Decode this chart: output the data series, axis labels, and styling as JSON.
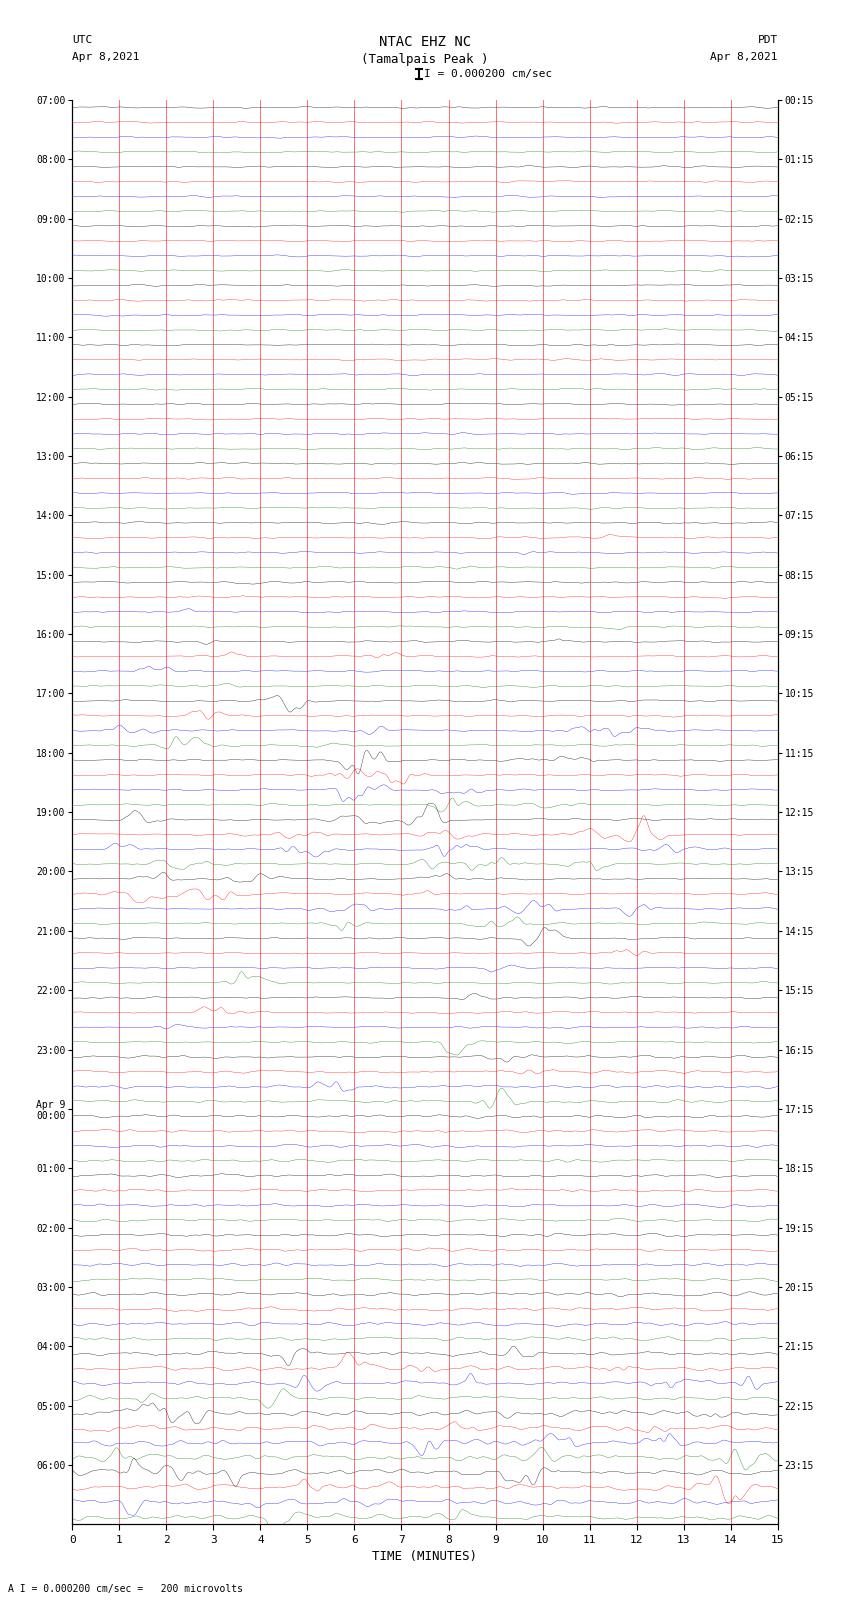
{
  "title_line1": "NTAC EHZ NC",
  "title_line2": "(Tamalpais Peak )",
  "scale_text": "I = 0.000200 cm/sec",
  "left_header": "UTC\nApr 8,2021",
  "right_header": "PDT\nApr 8,2021",
  "bottom_note": "A I = 0.000200 cm/sec =   200 microvolts",
  "xlabel": "TIME (MINUTES)",
  "left_times": [
    "07:00",
    "08:00",
    "09:00",
    "10:00",
    "11:00",
    "12:00",
    "13:00",
    "14:00",
    "15:00",
    "16:00",
    "17:00",
    "18:00",
    "19:00",
    "20:00",
    "21:00",
    "22:00",
    "23:00",
    "Apr 9\n00:00",
    "01:00",
    "02:00",
    "03:00",
    "04:00",
    "05:00",
    "06:00"
  ],
  "right_times": [
    "00:15",
    "01:15",
    "02:15",
    "03:15",
    "04:15",
    "05:15",
    "06:15",
    "07:15",
    "08:15",
    "09:15",
    "10:15",
    "11:15",
    "12:15",
    "13:15",
    "14:15",
    "15:15",
    "16:15",
    "17:15",
    "18:15",
    "19:15",
    "20:15",
    "21:15",
    "22:15",
    "23:15"
  ],
  "num_hours": 24,
  "traces_per_hour": 4,
  "colors": [
    "black",
    "red",
    "blue",
    "green"
  ],
  "xlim": [
    0,
    15
  ],
  "xticks": [
    0,
    1,
    2,
    3,
    4,
    5,
    6,
    7,
    8,
    9,
    10,
    11,
    12,
    13,
    14,
    15
  ],
  "noise_amp": 0.008,
  "fig_width": 8.5,
  "fig_height": 16.13,
  "dpi": 100
}
